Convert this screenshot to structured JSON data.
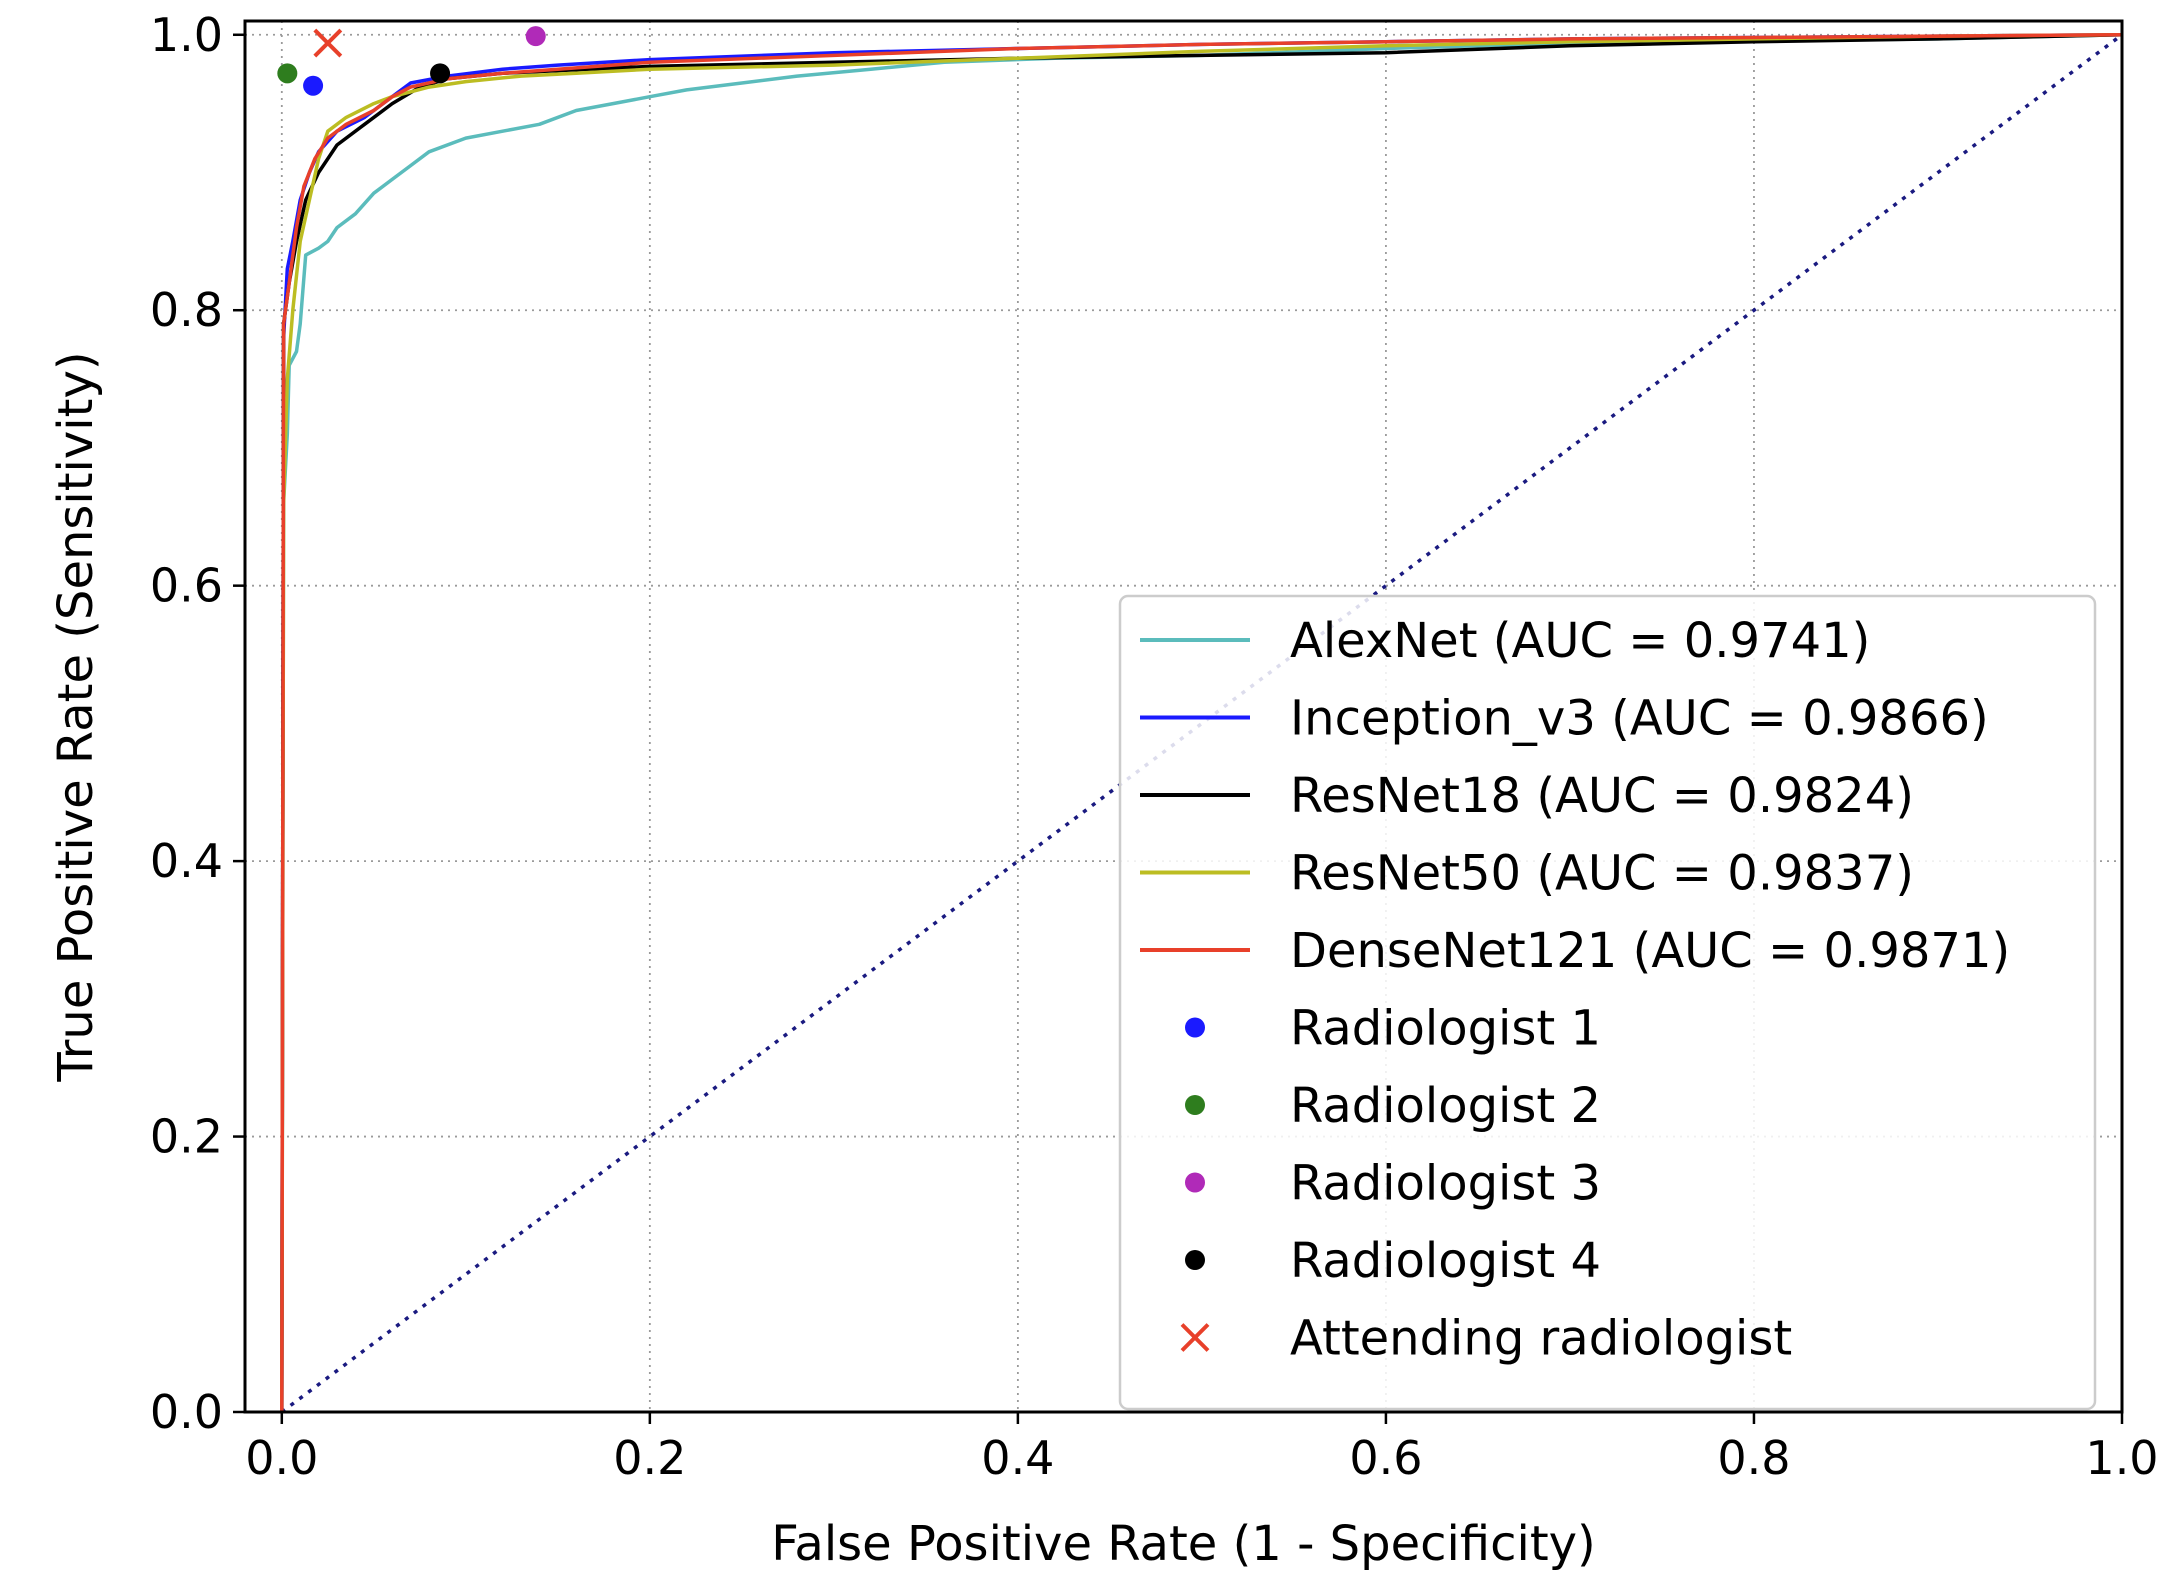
{
  "chart_data": {
    "type": "line",
    "title": "",
    "xlabel": "False Positive Rate (1 - Specificity)",
    "ylabel": "True Positive Rate (Sensitivity)",
    "xlim": [
      -0.02,
      1.0
    ],
    "ylim": [
      0.0,
      1.01
    ],
    "x_ticks": [
      "0.0",
      "0.2",
      "0.4",
      "0.6",
      "0.8",
      "1.0"
    ],
    "y_ticks": [
      "0.0",
      "0.2",
      "0.4",
      "0.6",
      "0.8",
      "1.0"
    ],
    "grid": true,
    "legend_position": "lower-right",
    "series": [
      {
        "name": "AlexNet (AUC = 0.9741)",
        "color": "#5bbcbc",
        "points": [
          [
            0,
            0
          ],
          [
            0.001,
            0.66
          ],
          [
            0.003,
            0.71
          ],
          [
            0.004,
            0.76
          ],
          [
            0.008,
            0.77
          ],
          [
            0.01,
            0.79
          ],
          [
            0.013,
            0.84
          ],
          [
            0.02,
            0.845
          ],
          [
            0.025,
            0.85
          ],
          [
            0.03,
            0.86
          ],
          [
            0.04,
            0.87
          ],
          [
            0.05,
            0.885
          ],
          [
            0.06,
            0.895
          ],
          [
            0.07,
            0.905
          ],
          [
            0.08,
            0.915
          ],
          [
            0.1,
            0.925
          ],
          [
            0.12,
            0.93
          ],
          [
            0.14,
            0.935
          ],
          [
            0.16,
            0.945
          ],
          [
            0.18,
            0.95
          ],
          [
            0.2,
            0.955
          ],
          [
            0.22,
            0.96
          ],
          [
            0.25,
            0.965
          ],
          [
            0.28,
            0.97
          ],
          [
            0.32,
            0.975
          ],
          [
            0.36,
            0.98
          ],
          [
            0.42,
            0.983
          ],
          [
            0.5,
            0.985
          ],
          [
            0.6,
            0.99
          ],
          [
            0.7,
            0.994
          ],
          [
            0.75,
            0.995
          ],
          [
            0.82,
            0.996
          ],
          [
            0.9,
            0.997
          ],
          [
            1.0,
            1.0
          ]
        ]
      },
      {
        "name": "Inception_v3 (AUC = 0.9866)",
        "color": "#1a1aff",
        "points": [
          [
            0,
            0
          ],
          [
            0.001,
            0.78
          ],
          [
            0.003,
            0.83
          ],
          [
            0.006,
            0.85
          ],
          [
            0.01,
            0.88
          ],
          [
            0.015,
            0.9
          ],
          [
            0.02,
            0.915
          ],
          [
            0.03,
            0.93
          ],
          [
            0.045,
            0.94
          ],
          [
            0.06,
            0.955
          ],
          [
            0.07,
            0.965
          ],
          [
            0.09,
            0.97
          ],
          [
            0.12,
            0.975
          ],
          [
            0.15,
            0.978
          ],
          [
            0.2,
            0.982
          ],
          [
            0.3,
            0.987
          ],
          [
            0.4,
            0.99
          ],
          [
            0.5,
            0.993
          ],
          [
            0.6,
            0.995
          ],
          [
            0.7,
            0.997
          ],
          [
            0.8,
            0.998
          ],
          [
            0.9,
            0.999
          ],
          [
            1.0,
            1.0
          ]
        ]
      },
      {
        "name": "ResNet18 (AUC = 0.9824)",
        "color": "#000000",
        "points": [
          [
            0,
            0
          ],
          [
            0.001,
            0.79
          ],
          [
            0.004,
            0.82
          ],
          [
            0.008,
            0.85
          ],
          [
            0.013,
            0.88
          ],
          [
            0.02,
            0.9
          ],
          [
            0.03,
            0.92
          ],
          [
            0.045,
            0.935
          ],
          [
            0.06,
            0.95
          ],
          [
            0.075,
            0.962
          ],
          [
            0.09,
            0.968
          ],
          [
            0.12,
            0.972
          ],
          [
            0.15,
            0.974
          ],
          [
            0.2,
            0.977
          ],
          [
            0.3,
            0.98
          ],
          [
            0.4,
            0.983
          ],
          [
            0.5,
            0.985
          ],
          [
            0.6,
            0.987
          ],
          [
            0.7,
            0.992
          ],
          [
            0.8,
            0.995
          ],
          [
            0.9,
            0.997
          ],
          [
            1.0,
            1.0
          ]
        ]
      },
      {
        "name": "ResNet50 (AUC = 0.9837)",
        "color": "#bcbd22",
        "points": [
          [
            0,
            0
          ],
          [
            0.001,
            0.66
          ],
          [
            0.003,
            0.75
          ],
          [
            0.006,
            0.8
          ],
          [
            0.01,
            0.85
          ],
          [
            0.015,
            0.88
          ],
          [
            0.02,
            0.91
          ],
          [
            0.025,
            0.93
          ],
          [
            0.035,
            0.94
          ],
          [
            0.05,
            0.95
          ],
          [
            0.06,
            0.955
          ],
          [
            0.08,
            0.962
          ],
          [
            0.1,
            0.966
          ],
          [
            0.13,
            0.97
          ],
          [
            0.16,
            0.972
          ],
          [
            0.2,
            0.975
          ],
          [
            0.3,
            0.978
          ],
          [
            0.4,
            0.983
          ],
          [
            0.5,
            0.988
          ],
          [
            0.6,
            0.992
          ],
          [
            0.7,
            0.995
          ],
          [
            0.8,
            0.997
          ],
          [
            0.9,
            0.999
          ],
          [
            1.0,
            1.0
          ]
        ]
      },
      {
        "name": "DenseNet121 (AUC = 0.9871)",
        "color": "#e8402a",
        "points": [
          [
            0,
            0
          ],
          [
            0.001,
            0.79
          ],
          [
            0.004,
            0.82
          ],
          [
            0.008,
            0.86
          ],
          [
            0.012,
            0.89
          ],
          [
            0.018,
            0.91
          ],
          [
            0.025,
            0.925
          ],
          [
            0.035,
            0.935
          ],
          [
            0.05,
            0.945
          ],
          [
            0.06,
            0.955
          ],
          [
            0.07,
            0.962
          ],
          [
            0.09,
            0.968
          ],
          [
            0.12,
            0.972
          ],
          [
            0.15,
            0.975
          ],
          [
            0.2,
            0.98
          ],
          [
            0.3,
            0.985
          ],
          [
            0.4,
            0.99
          ],
          [
            0.5,
            0.993
          ],
          [
            0.6,
            0.995
          ],
          [
            0.7,
            0.997
          ],
          [
            0.8,
            0.998
          ],
          [
            0.9,
            0.999
          ],
          [
            1.0,
            1.0
          ]
        ]
      },
      {
        "name": "",
        "color": "#1a1a80",
        "style": "dotted",
        "points": [
          [
            0,
            0
          ],
          [
            1,
            1
          ]
        ]
      }
    ],
    "markers": [
      {
        "name": "Radiologist 1",
        "x": 0.017,
        "y": 0.963,
        "color": "#1a1aff",
        "shape": "circle"
      },
      {
        "name": "Radiologist 2",
        "x": 0.003,
        "y": 0.972,
        "color": "#2e7d1e",
        "shape": "circle"
      },
      {
        "name": "Radiologist 3",
        "x": 0.138,
        "y": 0.999,
        "color": "#b02ab8",
        "shape": "circle"
      },
      {
        "name": "Radiologist 4",
        "x": 0.086,
        "y": 0.972,
        "color": "#000000",
        "shape": "circle"
      },
      {
        "name": "Attending radiologist",
        "x": 0.025,
        "y": 0.994,
        "color": "#e8402a",
        "shape": "x"
      }
    ]
  }
}
